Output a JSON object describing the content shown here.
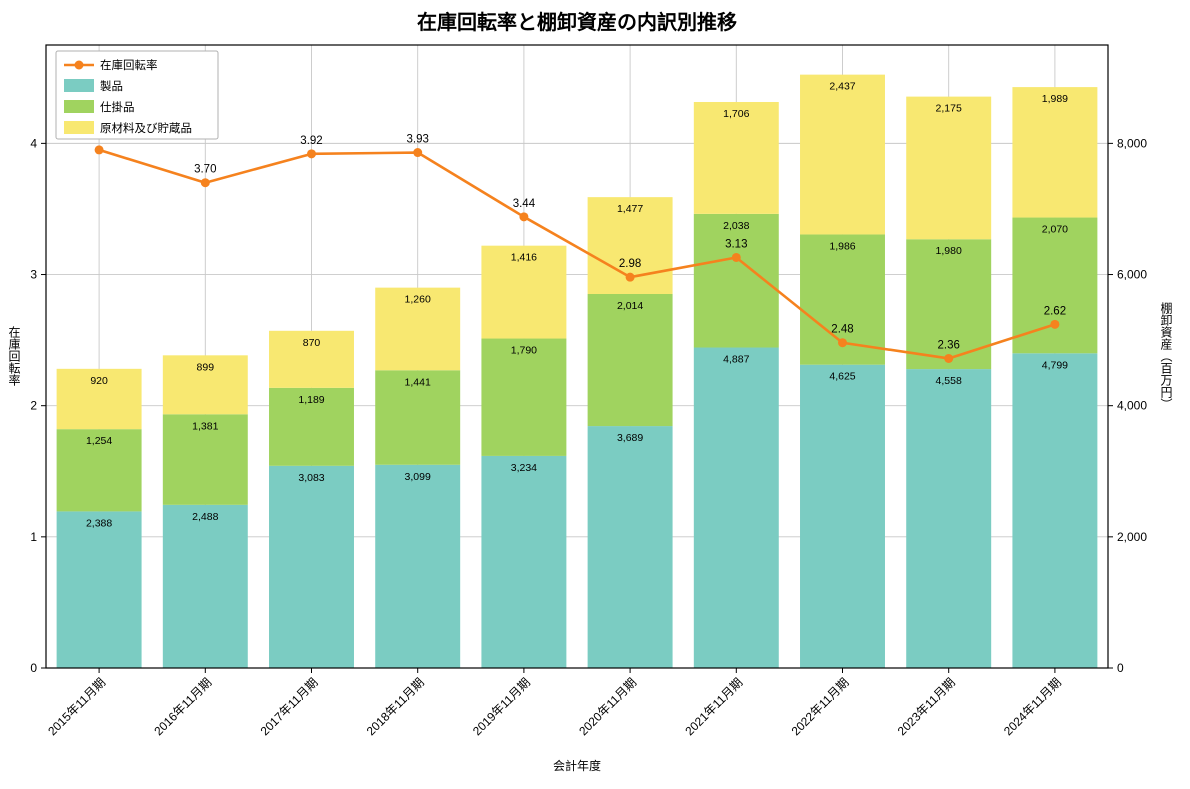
{
  "chart_data": {
    "type": "bar",
    "subtype": "stacked-bar-with-line",
    "title": "在庫回転率と棚卸資産の内訳別推移",
    "xlabel": "会計年度",
    "ylabel_left": "在庫回転率",
    "ylabel_right": "棚卸資産（百万円）",
    "categories": [
      "2015年11月期",
      "2016年11月期",
      "2017年11月期",
      "2018年11月期",
      "2019年11月期",
      "2020年11月期",
      "2021年11月期",
      "2022年11月期",
      "2023年11月期",
      "2024年11月期"
    ],
    "ylim_left": [
      0,
      4.75
    ],
    "ylim_right": [
      0,
      9500
    ],
    "yticks_left": [
      {
        "value": 0,
        "label": "0"
      },
      {
        "value": 1,
        "label": "1"
      },
      {
        "value": 2,
        "label": "2"
      },
      {
        "value": 3,
        "label": "3"
      },
      {
        "value": 4,
        "label": "4"
      }
    ],
    "yticks_right": [
      {
        "value": 0,
        "label": "0"
      },
      {
        "value": 2000,
        "label": "2,000"
      },
      {
        "value": 4000,
        "label": "4,000"
      },
      {
        "value": 6000,
        "label": "6,000"
      },
      {
        "value": 8000,
        "label": "8,000"
      }
    ],
    "grid": true,
    "legend_position": "upper-left",
    "bar_series": [
      {
        "name": "製品",
        "color": "#7bccc2",
        "values": [
          2388,
          2488,
          3083,
          3099,
          3234,
          3689,
          4887,
          4625,
          4558,
          4799
        ],
        "labels": [
          "2,388",
          "2,488",
          "3,083",
          "3,099",
          "3,234",
          "3,689",
          "4,887",
          "4,625",
          "4,558",
          "4,799"
        ]
      },
      {
        "name": "仕掛品",
        "color": "#a0d35f",
        "values": [
          1254,
          1381,
          1189,
          1441,
          1790,
          2014,
          2038,
          1986,
          1980,
          2070
        ],
        "labels": [
          "1,254",
          "1,381",
          "1,189",
          "1,441",
          "1,790",
          "2,014",
          "2,038",
          "1,986",
          "1,980",
          "2,070"
        ]
      },
      {
        "name": "原材料及び貯蔵品",
        "color": "#f8e871",
        "values": [
          920,
          899,
          870,
          1260,
          1416,
          1477,
          1706,
          2437,
          2175,
          1989
        ],
        "labels": [
          "920",
          "899",
          "870",
          "1,260",
          "1,416",
          "1,477",
          "1,706",
          "2,437",
          "2,175",
          "1,989"
        ]
      }
    ],
    "line_series": {
      "name": "在庫回転率",
      "color": "#f5821e",
      "values": [
        3.95,
        3.7,
        3.92,
        3.93,
        3.44,
        2.98,
        3.13,
        2.48,
        2.36,
        2.62
      ],
      "labels": [
        "",
        "3.70",
        "3.92",
        "3.93",
        "3.44",
        "2.98",
        "3.13",
        "2.48",
        "2.36",
        "2.62"
      ]
    },
    "legend": [
      "在庫回転率",
      "製品",
      "仕掛品",
      "原材料及び貯蔵品"
    ],
    "colors": {
      "grid": "#c8c8c8",
      "axis": "#000000",
      "bar_label_text": "#1a1a1a",
      "line_label_text": "#f5821e",
      "legend_border": "#b0b0b0",
      "legend_background": "#ffffff"
    }
  }
}
